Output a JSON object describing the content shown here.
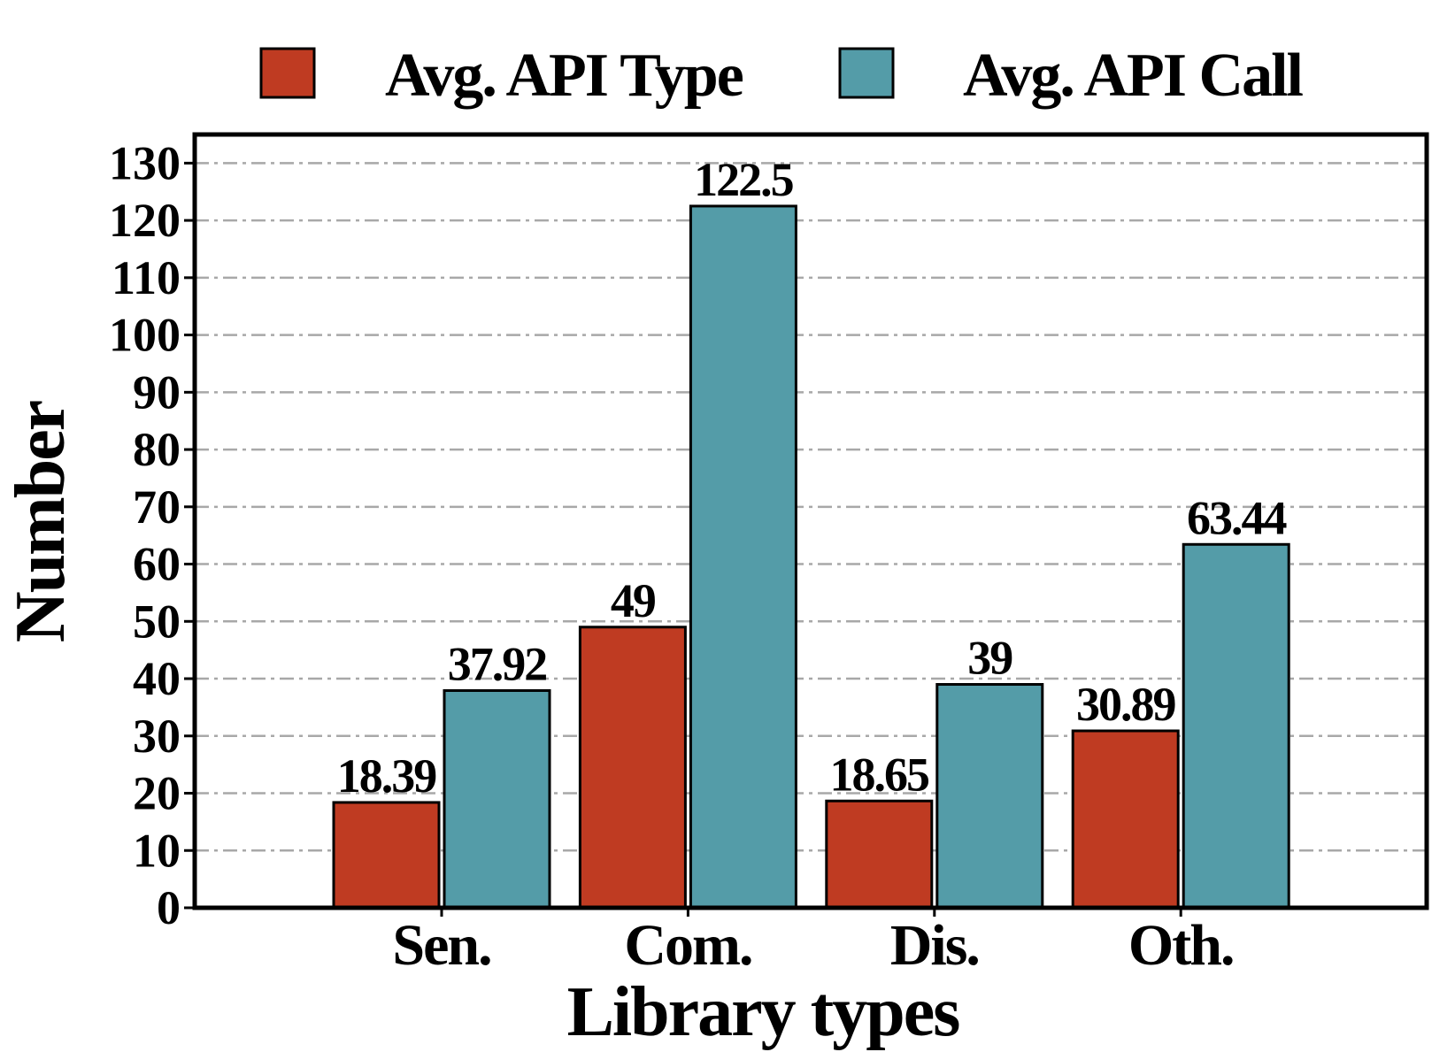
{
  "chart_data": {
    "type": "bar",
    "categories": [
      "Sen.",
      "Com.",
      "Dis.",
      "Oth."
    ],
    "series": [
      {
        "name": "Avg. API Type",
        "values": [
          18.39,
          49,
          18.65,
          30.89
        ],
        "color": "#bf3b22"
      },
      {
        "name": "Avg. API Call",
        "values": [
          37.92,
          122.5,
          39,
          63.44
        ],
        "color": "#549ca8"
      }
    ],
    "value_labels": [
      [
        "18.39",
        "49",
        "18.65",
        "30.89"
      ],
      [
        "37.92",
        "122.5",
        "39",
        "63.44"
      ]
    ],
    "xlabel": "Library types",
    "ylabel": "Number",
    "ylim": [
      0,
      135
    ],
    "yticks": [
      0,
      10,
      20,
      30,
      40,
      50,
      60,
      70,
      80,
      90,
      100,
      110,
      120,
      130
    ],
    "grid": true,
    "legend_position": "top"
  }
}
